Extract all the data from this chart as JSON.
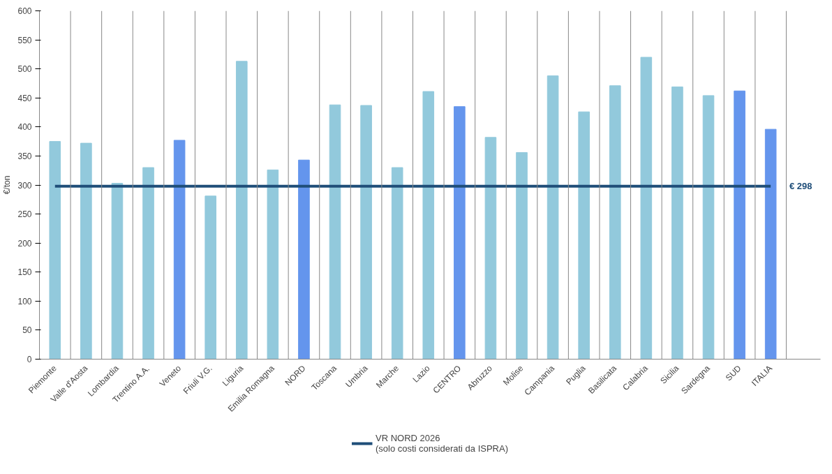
{
  "chart_data": {
    "type": "bar",
    "ylabel": "€/ton",
    "categories": [
      "Piemonte",
      "Valle d'Aosta",
      "Lombardia",
      "Trentino A.A.",
      "Veneto",
      "Friuli V.G.",
      "Liguria",
      "Emilia Romagna",
      "NORD",
      "Toscana",
      "Umbria",
      "Marche",
      "Lazio",
      "CENTRO",
      "Abruzzo",
      "Molise",
      "Campania",
      "Puglia",
      "Basilicata",
      "Calabria",
      "Sicilia",
      "Sardegna",
      "SUD",
      "ITALIA"
    ],
    "series": [
      {
        "type": "bar",
        "values": [
          375,
          372,
          303,
          330,
          377,
          281,
          513,
          326,
          343,
          438,
          437,
          330,
          461,
          435,
          382,
          356,
          488,
          426,
          471,
          520,
          469,
          454,
          462,
          396
        ],
        "colors": [
          "#92c9dc",
          "#92c9dc",
          "#92c9dc",
          "#92c9dc",
          "#6495ed",
          "#92c9dc",
          "#92c9dc",
          "#92c9dc",
          "#6495ed",
          "#92c9dc",
          "#92c9dc",
          "#92c9dc",
          "#92c9dc",
          "#6495ed",
          "#92c9dc",
          "#92c9dc",
          "#92c9dc",
          "#92c9dc",
          "#92c9dc",
          "#92c9dc",
          "#92c9dc",
          "#92c9dc",
          "#6495ed",
          "#6495ed"
        ]
      },
      {
        "type": "line",
        "name": "VR NORD 2026\n(solo costi considerati da ISPRA)",
        "color": "#1f4e79",
        "values": [
          298,
          298,
          298,
          298,
          298,
          298,
          298,
          298,
          298,
          298,
          298,
          298,
          298,
          298,
          298,
          298,
          298,
          298,
          298,
          298,
          298,
          298,
          298,
          298
        ]
      }
    ],
    "annotations": [
      {
        "text": "€ 298",
        "x": "ITALIA",
        "y": 298
      }
    ],
    "ylim": [
      0,
      600
    ],
    "yticks": [
      0,
      50,
      100,
      150,
      200,
      250,
      300,
      350,
      400,
      450,
      500,
      550,
      600
    ],
    "grid": "x",
    "legend": "bottom"
  }
}
